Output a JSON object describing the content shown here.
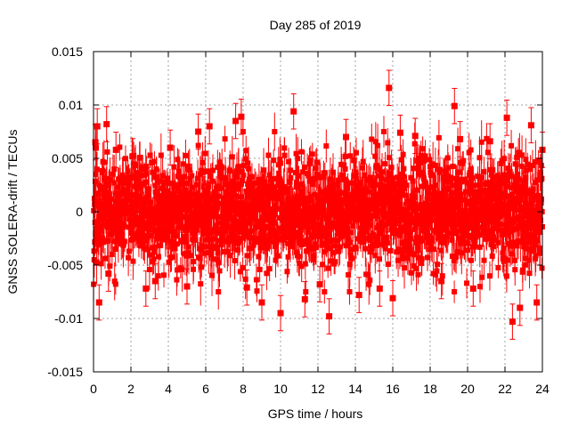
{
  "chart_data": {
    "type": "scatter",
    "title": "Day 285 of 2019",
    "xlabel": "GPS time / hours",
    "ylabel": "GNSS SOLERA-drift / TECUs",
    "xlim": [
      0,
      24
    ],
    "ylim": [
      -0.015,
      0.015
    ],
    "xticks": [
      "0",
      "2",
      "4",
      "6",
      "8",
      "10",
      "12",
      "14",
      "16",
      "18",
      "20",
      "22",
      "24"
    ],
    "yticks": [
      "-0.015",
      "-0.01",
      "-0.005",
      "0",
      "0.005",
      "0.01",
      "0.015"
    ],
    "grid": true,
    "legend": "none",
    "series": [
      {
        "color": "#ff0000",
        "marker": "square",
        "error_bars": true,
        "typical_error": 0.0015,
        "typical_spread": 0.0025,
        "x": [
          0.1,
          0.2,
          0.3,
          0.7,
          0.8,
          1.2,
          2.1,
          2.8,
          3.3,
          4.1,
          5.0,
          5.6,
          6.2,
          7.6,
          7.9,
          8.2,
          9.0,
          10.0,
          10.7,
          11.3,
          12.1,
          12.6,
          13.5,
          14.2,
          15.3,
          15.8,
          16.0,
          16.4,
          17.2,
          18.6,
          19.3,
          19.6,
          20.3,
          21.2,
          22.1,
          22.4,
          22.8,
          23.4,
          23.7,
          24.0
        ],
        "y": [
          0.0065,
          0.008,
          -0.0085,
          0.0082,
          -0.0058,
          0.0058,
          0.0052,
          -0.0072,
          -0.0065,
          0.006,
          -0.007,
          0.0075,
          0.008,
          0.0085,
          0.0089,
          -0.0071,
          -0.0085,
          -0.0095,
          0.0094,
          -0.0082,
          -0.0068,
          -0.0098,
          0.007,
          -0.0078,
          -0.0072,
          0.0116,
          -0.0081,
          0.0074,
          0.0071,
          -0.0065,
          0.0099,
          0.0068,
          -0.0072,
          0.0066,
          0.0088,
          -0.0103,
          -0.009,
          0.0081,
          -0.0085,
          0.0058
        ]
      }
    ]
  }
}
